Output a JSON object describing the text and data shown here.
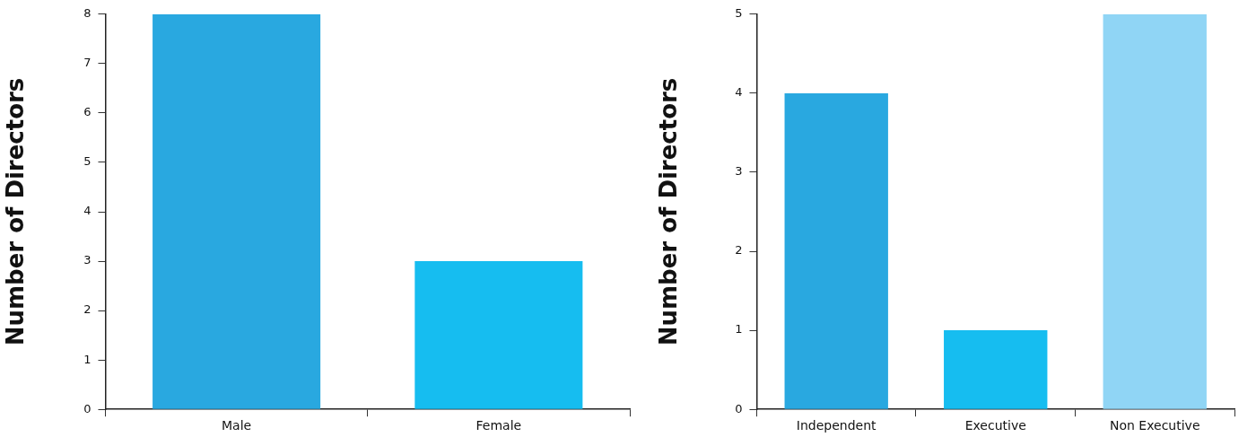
{
  "chart_data": [
    {
      "type": "bar",
      "ylabel": "Number of Directors",
      "categories": [
        "Male",
        "Female"
      ],
      "colors": [
        "#29a8e0",
        "#16bdf0"
      ],
      "values": [
        8,
        3
      ],
      "ylim": [
        0,
        8
      ],
      "yticks": [
        0,
        1,
        2,
        3,
        4,
        5,
        6,
        7,
        8
      ],
      "legend": false
    },
    {
      "type": "bar",
      "ylabel": "Number of Directors",
      "categories": [
        "Independent",
        "Executive",
        "Non Executive"
      ],
      "colors": [
        "#29a8e0",
        "#16bdf0",
        "#90d5f5"
      ],
      "values": [
        4,
        1,
        5
      ],
      "ylim": [
        0,
        5
      ],
      "yticks": [
        0,
        1,
        2,
        3,
        4,
        5
      ],
      "legend": false
    }
  ]
}
